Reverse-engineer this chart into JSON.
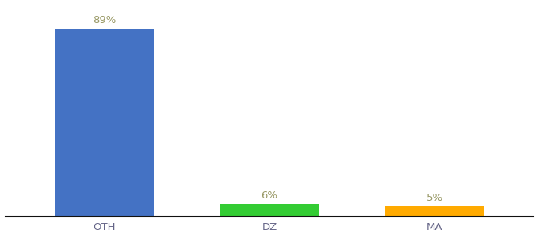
{
  "categories": [
    "OTH",
    "DZ",
    "MA"
  ],
  "values": [
    89,
    6,
    5
  ],
  "labels": [
    "89%",
    "6%",
    "5%"
  ],
  "bar_colors": [
    "#4472c4",
    "#33cc33",
    "#ffaa00"
  ],
  "background_color": "#ffffff",
  "ylim": [
    0,
    100
  ],
  "bar_width": 0.6,
  "label_fontsize": 9.5,
  "tick_fontsize": 9.5,
  "label_color": "#999966",
  "tick_color": "#666688",
  "spine_color": "#111111"
}
